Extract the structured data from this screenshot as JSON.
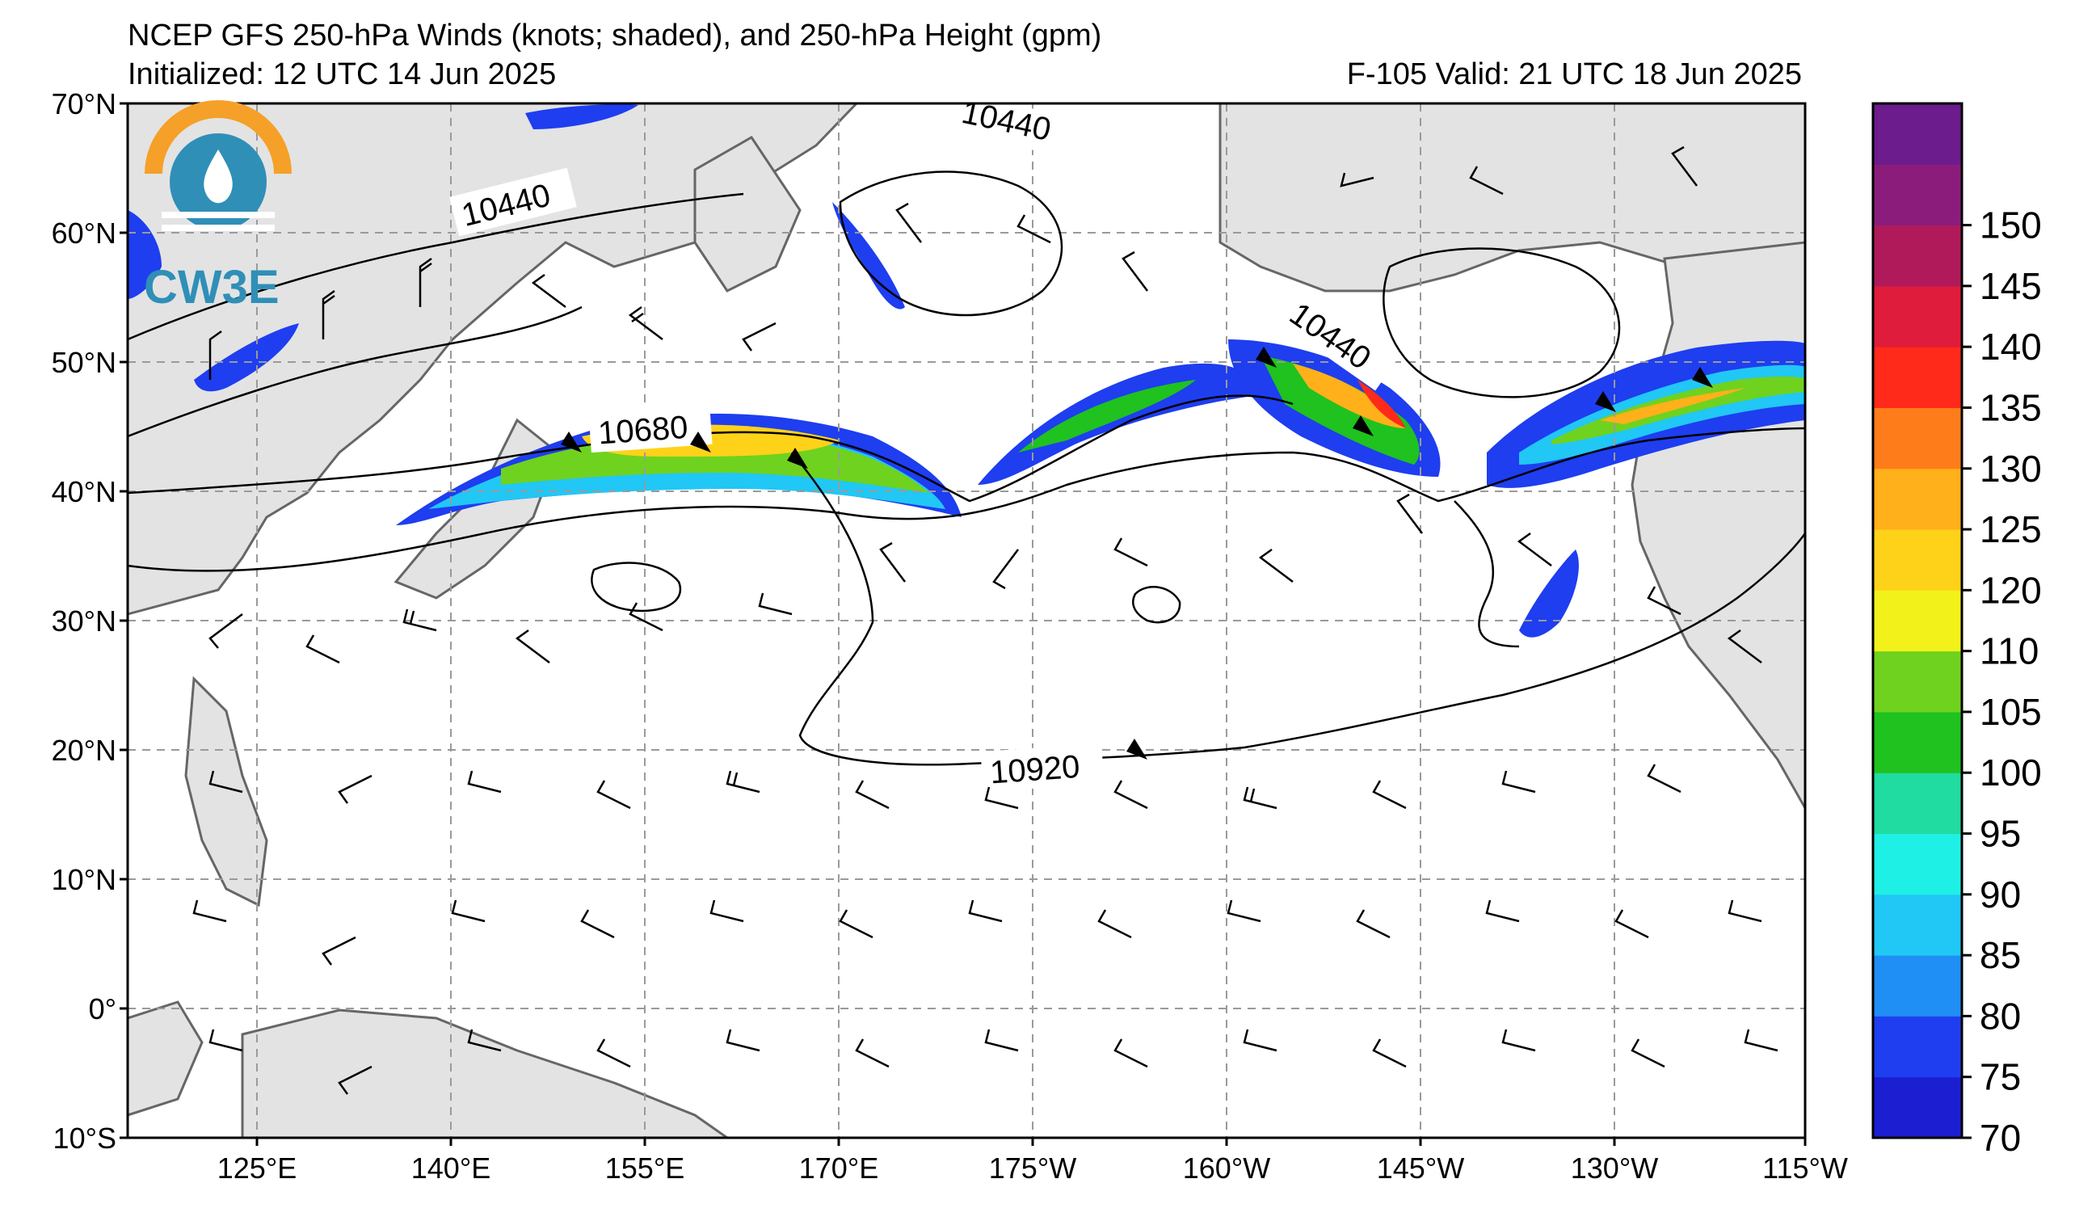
{
  "header": {
    "title": "NCEP GFS 250-hPa Winds (knots; shaded), and 250-hPa Height (gpm)",
    "initialized": "Initialized: 12 UTC 14 Jun 2025",
    "valid": "F-105  Valid: 21 UTC 18 Jun 2025"
  },
  "logo": {
    "text": "CW3E"
  },
  "axes": {
    "lat_labels": [
      "70°N",
      "60°N",
      "50°N",
      "40°N",
      "30°N",
      "20°N",
      "10°N",
      "0°",
      "10°S"
    ],
    "lon_labels": [
      "125°E",
      "140°E",
      "155°E",
      "170°E",
      "175°W",
      "160°W",
      "145°W",
      "130°W",
      "115°W"
    ]
  },
  "contour_labels": [
    "10440",
    "10440",
    "10440",
    "10680",
    "10920"
  ],
  "colorbar": {
    "ticks": [
      "70",
      "75",
      "80",
      "85",
      "90",
      "95",
      "100",
      "105",
      "110",
      "120",
      "125",
      "130",
      "135",
      "140",
      "145",
      "150"
    ],
    "colors": [
      "#1c1ed2",
      "#1e3ef0",
      "#1f8ef5",
      "#21c7f5",
      "#1ff0e6",
      "#20dca0",
      "#1fc21f",
      "#6fd21f",
      "#f2f21a",
      "#ffd21a",
      "#ffb01a",
      "#ff7c1a",
      "#ff2a1a",
      "#e01c3c",
      "#b01a5a",
      "#8c1c7c",
      "#6c1c8c"
    ]
  }
}
